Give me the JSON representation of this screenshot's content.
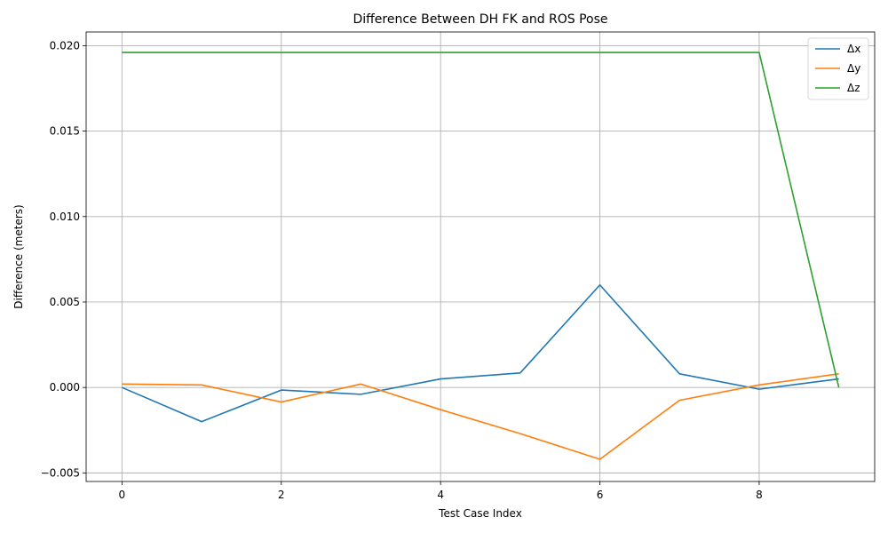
{
  "chart_data": {
    "type": "line",
    "title": "Difference Between DH FK and ROS Pose",
    "xlabel": "Test Case Index",
    "ylabel": "Difference (meters)",
    "x": [
      0,
      1,
      2,
      3,
      4,
      5,
      6,
      7,
      8,
      9
    ],
    "xlim": [
      -0.45,
      9.45
    ],
    "ylim": [
      -0.0055,
      0.0208
    ],
    "xticks": [
      0,
      2,
      4,
      6,
      8
    ],
    "xtick_labels": [
      "0",
      "2",
      "4",
      "6",
      "8"
    ],
    "yticks": [
      -0.005,
      0.0,
      0.005,
      0.01,
      0.015,
      0.02
    ],
    "ytick_labels": [
      "−0.005",
      "0.000",
      "0.005",
      "0.010",
      "0.015",
      "0.020"
    ],
    "grid": true,
    "legend_position": "top-right",
    "series": [
      {
        "name": "Δx",
        "color": "#1f77b4",
        "values": [
          0.0,
          -0.002,
          -0.00015,
          -0.0004,
          0.0005,
          0.00085,
          0.006,
          0.0008,
          -0.0001,
          0.0005
        ]
      },
      {
        "name": "Δy",
        "color": "#ff7f0e",
        "values": [
          0.0002,
          0.00015,
          -0.00085,
          0.0002,
          -0.0013,
          -0.0027,
          -0.0042,
          -0.00075,
          0.00015,
          0.0008
        ]
      },
      {
        "name": "Δz",
        "color": "#2ca02c",
        "values": [
          0.0196,
          0.0196,
          0.0196,
          0.0196,
          0.0196,
          0.0196,
          0.0196,
          0.0196,
          0.0196,
          0.0
        ]
      }
    ]
  }
}
